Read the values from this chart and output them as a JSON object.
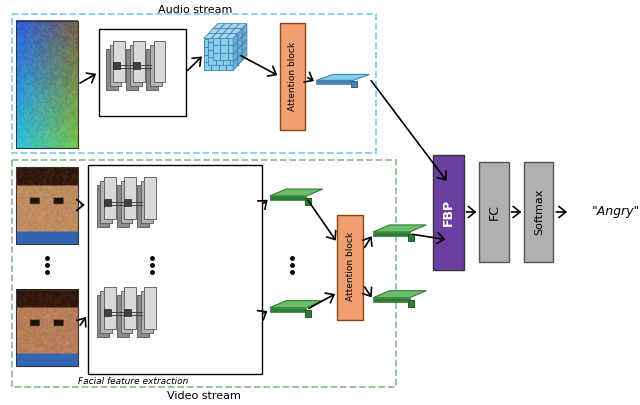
{
  "audio_stream_label": "Audio stream",
  "video_stream_label": "Video stream",
  "facial_feature_label": "Facial feature extraction",
  "attention_block_color": "#F0A070",
  "fbp_color": "#6B3FA0",
  "fc_color": "#B0B0B0",
  "softmax_color": "#B0B0B0",
  "dashed_border_audio": "#87CEEB",
  "dashed_border_video": "#90C090",
  "output_label": "\"Angry\"",
  "background_color": "#ffffff",
  "blue_face_color": "#6EB5E0",
  "blue_face_dark": "#3A80C0",
  "blue_face_mid": "#5BA8D8",
  "green_vec_color": "#6BBF6B",
  "green_vec_dark": "#2E7D32",
  "cnn_light": "#C8C8C8",
  "cnn_dark": "#707070",
  "cnn_darkest": "#404040"
}
